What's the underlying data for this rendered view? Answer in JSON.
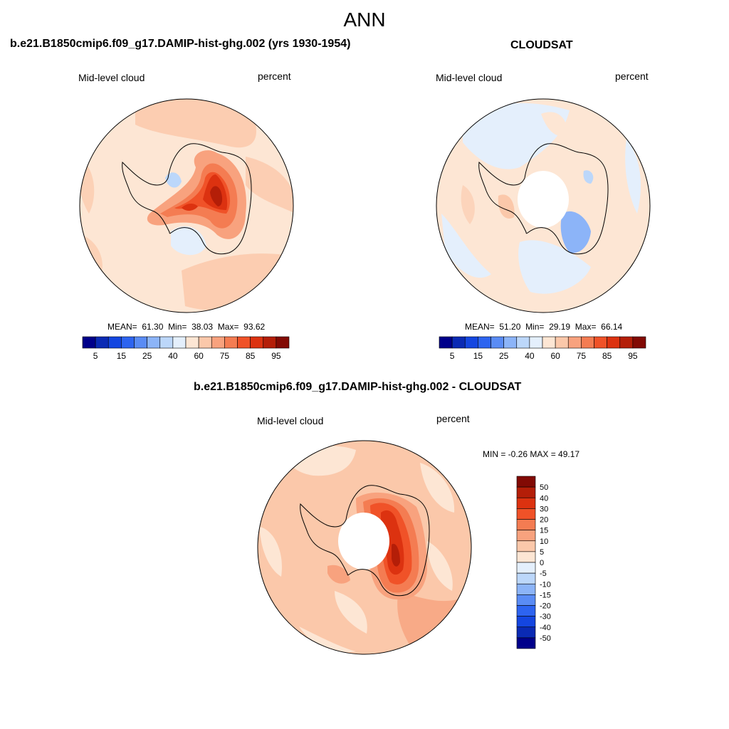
{
  "season": "ANN",
  "panels": {
    "model": {
      "title": "b.e21.B1850cmip6.f09_g17.DAMIP-hist-ghg.002 (yrs 1930-1954)",
      "left_label": "Mid-level cloud",
      "right_label": "percent",
      "stats": {
        "mean_label": "MEAN=",
        "mean": "61.30",
        "min_label": "Min=",
        "min": "38.03",
        "max_label": "Max=",
        "max": "93.62"
      }
    },
    "obs": {
      "title": "CLOUDSAT",
      "left_label": "Mid-level cloud",
      "right_label": "percent",
      "stats": {
        "mean_label": "MEAN=",
        "mean": "51.20",
        "min_label": "Min=",
        "min": "29.19",
        "max_label": "Max=",
        "max": "66.14"
      }
    },
    "diff": {
      "title": "b.e21.B1850cmip6.f09_g17.DAMIP-hist-ghg.002 - CLOUDSAT",
      "left_label": "Mid-level cloud",
      "right_label": "percent",
      "minmax": "MIN =  -0.26 MAX =  49.17"
    }
  },
  "colorbar_abs": {
    "colors": [
      "#00008a",
      "#0a2ab4",
      "#1446e0",
      "#2d64f0",
      "#5a8cf5",
      "#8cb4f8",
      "#bcd7fa",
      "#e4effc",
      "#fde6d4",
      "#fbc8aa",
      "#f8a27e",
      "#f47c52",
      "#f05228",
      "#dc3210",
      "#b41e08",
      "#820a04"
    ],
    "tick_labels": [
      "5",
      "15",
      "25",
      "40",
      "60",
      "75",
      "85",
      "95"
    ]
  },
  "colorbar_diff": {
    "colors": [
      "#820a04",
      "#b41e08",
      "#dc3210",
      "#f05228",
      "#f47c52",
      "#f8a27e",
      "#fbc8aa",
      "#fde6d4",
      "#e4effc",
      "#bcd7fa",
      "#8cb4f8",
      "#5a8cf5",
      "#2d64f0",
      "#1446e0",
      "#0a2ab4",
      "#00008a"
    ],
    "tick_labels": [
      "50",
      "40",
      "30",
      "20",
      "15",
      "10",
      "5",
      "0",
      "-5",
      "-10",
      "-15",
      "-20",
      "-30",
      "-40",
      "-50"
    ]
  }
}
